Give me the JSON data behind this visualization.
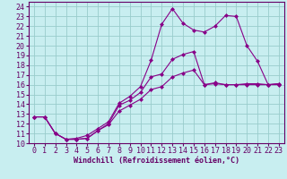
{
  "xlabel": "Windchill (Refroidissement éolien,°C)",
  "bg_color": "#c8eef0",
  "grid_color": "#99cccc",
  "line_color": "#880088",
  "spine_color": "#660066",
  "xlim": [
    -0.5,
    23.5
  ],
  "ylim": [
    10,
    24.5
  ],
  "xticks": [
    0,
    1,
    2,
    3,
    4,
    5,
    6,
    7,
    8,
    9,
    10,
    11,
    12,
    13,
    14,
    15,
    16,
    17,
    18,
    19,
    20,
    21,
    22,
    23
  ],
  "yticks": [
    10,
    11,
    12,
    13,
    14,
    15,
    16,
    17,
    18,
    19,
    20,
    21,
    22,
    23,
    24
  ],
  "line1_x": [
    0,
    1,
    2,
    3,
    4,
    5,
    6,
    7,
    8,
    9,
    10,
    11,
    12,
    13,
    14,
    15,
    16,
    17,
    18,
    19,
    20,
    21,
    22,
    23
  ],
  "line1_y": [
    12.7,
    12.7,
    11.0,
    10.4,
    10.4,
    10.5,
    11.3,
    12.0,
    13.9,
    14.4,
    15.2,
    16.8,
    17.1,
    18.6,
    19.1,
    19.4,
    16.0,
    16.2,
    16.0,
    16.0,
    16.1,
    16.1,
    16.0,
    16.1
  ],
  "line2_x": [
    0,
    1,
    2,
    3,
    4,
    5,
    6,
    7,
    8,
    9,
    10,
    11,
    12,
    13,
    14,
    15,
    16,
    17,
    18,
    19,
    20,
    21,
    22,
    23
  ],
  "line2_y": [
    12.7,
    12.7,
    11.0,
    10.4,
    10.5,
    10.8,
    11.5,
    12.2,
    14.1,
    14.8,
    15.8,
    18.5,
    22.2,
    23.8,
    22.3,
    21.6,
    21.4,
    22.0,
    23.1,
    23.0,
    20.0,
    18.4,
    16.0,
    16.1
  ],
  "line3_x": [
    0,
    1,
    2,
    3,
    4,
    5,
    6,
    7,
    8,
    9,
    10,
    11,
    12,
    13,
    14,
    15,
    16,
    17,
    18,
    19,
    20,
    21,
    22,
    23
  ],
  "line3_y": [
    12.7,
    12.7,
    11.0,
    10.4,
    10.4,
    10.5,
    11.3,
    11.9,
    13.3,
    13.9,
    14.5,
    15.5,
    15.8,
    16.8,
    17.2,
    17.5,
    16.0,
    16.1,
    16.0,
    16.0,
    16.0,
    16.0,
    16.0,
    16.0
  ],
  "tick_fontsize": 6,
  "xlabel_fontsize": 6
}
